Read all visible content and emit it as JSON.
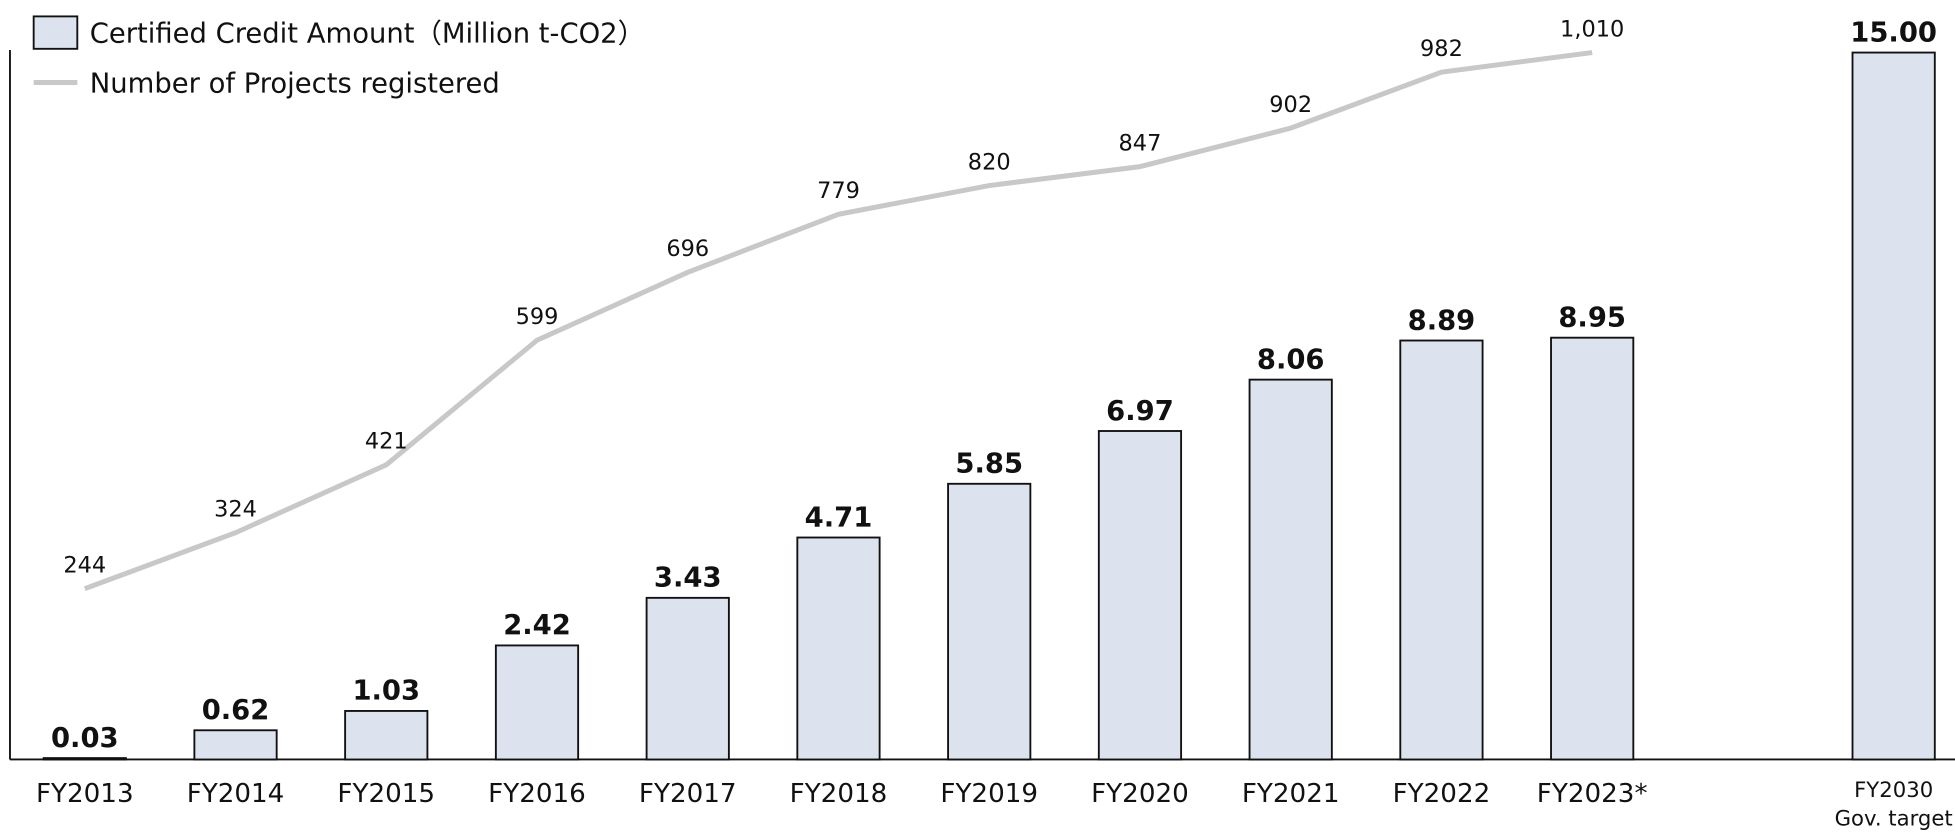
{
  "chart_data": {
    "type": "bar",
    "categories": [
      "FY2013",
      "FY2014",
      "FY2015",
      "FY2016",
      "FY2017",
      "FY2018",
      "FY2019",
      "FY2020",
      "FY2021",
      "FY2022",
      "FY2023*",
      null,
      "FY2030"
    ],
    "target_note": "Gov. target",
    "ylim": [
      0,
      15
    ],
    "y2lim": [
      0,
      1010
    ],
    "series": [
      {
        "name": "Certified Credit Amount（Million t-CO2）",
        "type": "bar",
        "color": "#dde3ee",
        "values": [
          0.03,
          0.62,
          1.03,
          2.42,
          3.43,
          4.71,
          5.85,
          6.97,
          8.06,
          8.89,
          8.95,
          null,
          15
        ],
        "value_labels": [
          "0.03",
          "0.62",
          "1.03",
          "2.42",
          "3.43",
          "4.71",
          "5.85",
          "6.97",
          "8.06",
          "8.89",
          "8.95",
          null,
          "15.00"
        ]
      },
      {
        "name": "Number of Projects registered",
        "type": "line",
        "axis": "y2",
        "color": "#c8c8c8",
        "values": [
          244,
          324,
          421,
          599,
          696,
          779,
          820,
          847,
          902,
          982,
          1010,
          null,
          null
        ],
        "value_labels": [
          "244",
          "324",
          "421",
          "599",
          "696",
          "779",
          "820",
          "847",
          "902",
          "982",
          "1,010",
          null,
          null
        ]
      }
    ]
  }
}
